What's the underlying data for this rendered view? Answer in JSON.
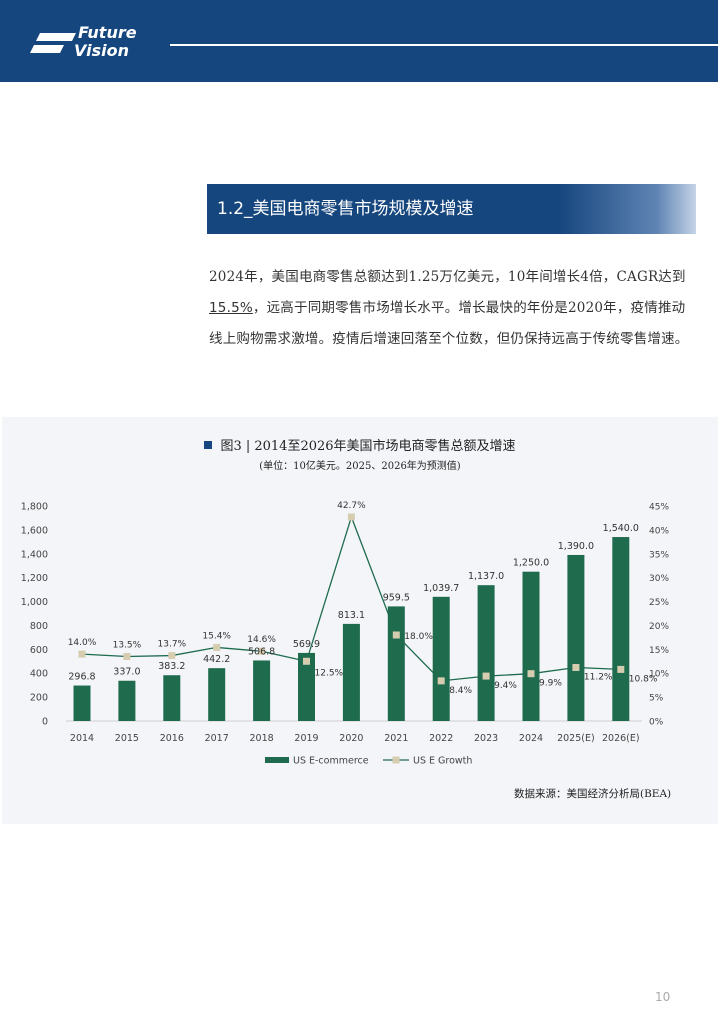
{
  "header": {
    "logo_line1": "Future",
    "logo_line2": "Vision"
  },
  "section": {
    "title": "1.2_美国电商零售市场规模及增速"
  },
  "paragraph": {
    "part1": "2024年，美国电商零售总额达到1.25万亿美元，10年间增长4倍，CAGR达到",
    "highlight": "15.5%",
    "part2": "，远高于同期零售市场增长水平。增长最快的年份是2020年，疫情推动线上购物需求激增。疫情后增速回落至个位数，但仍保持远高于传统零售增速。"
  },
  "figure": {
    "title": "图3 | 2014至2026年美国市场电商零售总额及增速",
    "subtitle": "(单位：10亿美元。2025、2026年为预测值)",
    "source": "数据来源：美国经济分析局(BEA)"
  },
  "chart_data": {
    "type": "bar",
    "categories": [
      "2014",
      "2015",
      "2016",
      "2017",
      "2018",
      "2019",
      "2020",
      "2021",
      "2022",
      "2023",
      "2024",
      "2025(E)",
      "2026(E)"
    ],
    "series": [
      {
        "name": "US E-commerce",
        "type": "bar",
        "axis": "left",
        "color": "#1e6b4e",
        "values": [
          296.8,
          337.0,
          383.2,
          442.2,
          506.8,
          569.9,
          813.1,
          959.5,
          1039.7,
          1137.0,
          1250.0,
          1390.0,
          1540.0
        ],
        "labels": [
          "296.8",
          "337.0",
          "383.2",
          "442.2",
          "506.8",
          "569.9",
          "813.1",
          "959.5",
          "1,039.7",
          "1,137.0",
          "1,250.0",
          "1,390.0",
          "1,540.0"
        ]
      },
      {
        "name": "US E Growth",
        "type": "line",
        "axis": "right",
        "color": "#1e6b4e",
        "marker_color": "#d6cdb0",
        "values": [
          14.0,
          13.5,
          13.7,
          15.4,
          14.6,
          12.5,
          42.7,
          18.0,
          8.4,
          9.4,
          9.9,
          11.2,
          10.8
        ],
        "labels": [
          "14.0%",
          "13.5%",
          "13.7%",
          "15.4%",
          "14.6%",
          "12.5%",
          "42.7%",
          "18.0%",
          "8.4%",
          "9.4%",
          "9.9%",
          "11.2%",
          "10.8%"
        ]
      }
    ],
    "y_left": {
      "min": 0,
      "max": 1800,
      "step": 200,
      "tick_labels": [
        "0",
        "200",
        "400",
        "600",
        "800",
        "1,000",
        "1,200",
        "1,400",
        "1,600",
        "1,800"
      ]
    },
    "y_right": {
      "min": 0,
      "max": 45,
      "step": 5,
      "tick_labels": [
        "0%",
        "5%",
        "10%",
        "15%",
        "20%",
        "25%",
        "30%",
        "35%",
        "40%",
        "45%"
      ]
    },
    "legend": [
      "US E-commerce",
      "US E Growth"
    ],
    "legend_position": "bottom",
    "grid": false
  },
  "page": {
    "number": "10"
  }
}
